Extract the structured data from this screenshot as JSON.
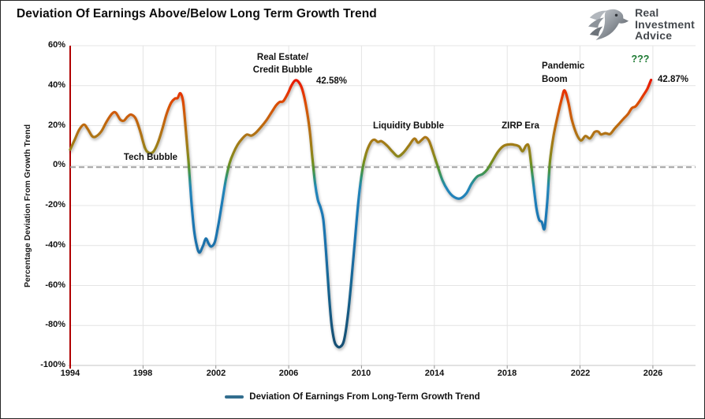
{
  "title": "Deviation Of Earnings Above/Below Long Term Growth Trend",
  "logo": {
    "line1": "Real",
    "line2": "Investment",
    "line3": "Advice"
  },
  "legend": {
    "label": "Deviation Of Earnings From Long-Term Growth Trend"
  },
  "annotations": {
    "tech_bubble": "Tech Bubble",
    "real_estate_line1": "Real Estate/",
    "real_estate_line2": "Credit Bubble",
    "peak_2006_label": "42.58%",
    "liquidity_bubble": "Liquidity Bubble",
    "zirp_era": "ZIRP Era",
    "pandemic_line1": "Pandemic",
    "pandemic_line2": "Boom",
    "question_marks": "???",
    "current_value_label": "42.87%"
  },
  "colors": {
    "left_axis_red": "#b00000",
    "gridline": "#e4e4e4",
    "zero_dash": "#a3a3a3",
    "question_green": "#1d7a33",
    "legend_swatch": "#336e8e",
    "text": "#111111"
  },
  "chart_data": {
    "type": "line",
    "title": "Deviation Of Earnings Above/Below Long Term Growth Trend",
    "xlabel": "",
    "ylabel": "Percentage Deviation From Growth Trend",
    "xlim": [
      1994,
      2026
    ],
    "ylim": [
      -100,
      60
    ],
    "grid": "horizontal every 20%, vertical every 4 years, light gray",
    "legend_position": "bottom-center",
    "zero_line": {
      "value": -0.8,
      "style": "dashed",
      "color": "#a3a3a3"
    },
    "y_ticks": [
      60,
      40,
      20,
      0,
      -20,
      -40,
      -60,
      -80,
      -100
    ],
    "y_tick_labels": [
      "60%",
      "40%",
      "20%",
      "0%",
      "-20%",
      "-40%",
      "-60%",
      "-80%",
      "-100%"
    ],
    "x_ticks": [
      1994,
      1998,
      2002,
      2006,
      2010,
      2014,
      2018,
      2022,
      2026
    ],
    "x_tick_labels": [
      "1994",
      "1998",
      "2002",
      "2006",
      "2010",
      "2014",
      "2018",
      "2022",
      "2026"
    ],
    "annotated_peaks": [
      {
        "label": "Tech Bubble",
        "year": 2000.05,
        "value": 36.2
      },
      {
        "label": "Real Estate/Credit Bubble",
        "year": 2006.35,
        "value": 42.58
      },
      {
        "label": "Liquidity Bubble",
        "year": 2013.5,
        "value": 14.2
      },
      {
        "label": "ZIRP Era",
        "year": 2018.1,
        "value": 10.6
      },
      {
        "label": "Pandemic Boom",
        "year": 2021.15,
        "value": 37.6
      },
      {
        "label": "???",
        "year": 2025.9,
        "value": 42.87
      }
    ],
    "line_gradient": [
      {
        "at": 60,
        "color": "#cf0500"
      },
      {
        "at": 45,
        "color": "#e60e00"
      },
      {
        "at": 38,
        "color": "#e82c00"
      },
      {
        "at": 30,
        "color": "#d95104"
      },
      {
        "at": 22,
        "color": "#c2660d"
      },
      {
        "at": 14,
        "color": "#ab7615"
      },
      {
        "at": 7,
        "color": "#95821a"
      },
      {
        "at": 2,
        "color": "#7b8c1e"
      },
      {
        "at": -2,
        "color": "#4f9338"
      },
      {
        "at": -6,
        "color": "#2f9377"
      },
      {
        "at": -11,
        "color": "#2287b9"
      },
      {
        "at": -20,
        "color": "#1f7cb8"
      },
      {
        "at": -40,
        "color": "#1c71aa"
      },
      {
        "at": -60,
        "color": "#186592"
      },
      {
        "at": -80,
        "color": "#14557c"
      },
      {
        "at": -100,
        "color": "#114a6b"
      }
    ],
    "series": [
      {
        "name": "Deviation Of Earnings From Long-Term Growth Trend",
        "points": [
          [
            1994.0,
            8
          ],
          [
            1994.25,
            13
          ],
          [
            1994.5,
            18
          ],
          [
            1994.75,
            20.5
          ],
          [
            1994.95,
            18.5
          ],
          [
            1995.2,
            14.8
          ],
          [
            1995.4,
            14.5
          ],
          [
            1995.7,
            17
          ],
          [
            1996.0,
            22
          ],
          [
            1996.3,
            26
          ],
          [
            1996.5,
            26.5
          ],
          [
            1996.75,
            23
          ],
          [
            1996.95,
            22.5
          ],
          [
            1997.15,
            24.5
          ],
          [
            1997.35,
            25.5
          ],
          [
            1997.6,
            23.5
          ],
          [
            1997.85,
            17
          ],
          [
            1998.1,
            9
          ],
          [
            1998.3,
            6.5
          ],
          [
            1998.55,
            6.8
          ],
          [
            1998.8,
            11
          ],
          [
            1999.05,
            18
          ],
          [
            1999.3,
            26
          ],
          [
            1999.55,
            31.5
          ],
          [
            1999.75,
            33.5
          ],
          [
            1999.9,
            33.8
          ],
          [
            2000.05,
            36.2
          ],
          [
            2000.2,
            32
          ],
          [
            2000.35,
            18
          ],
          [
            2000.5,
            2
          ],
          [
            2000.65,
            -17
          ],
          [
            2000.8,
            -32
          ],
          [
            2000.95,
            -40
          ],
          [
            2001.1,
            -43.5
          ],
          [
            2001.3,
            -40
          ],
          [
            2001.45,
            -36.5
          ],
          [
            2001.6,
            -39
          ],
          [
            2001.75,
            -40.5
          ],
          [
            2001.95,
            -38
          ],
          [
            2002.15,
            -29
          ],
          [
            2002.35,
            -18
          ],
          [
            2002.55,
            -7
          ],
          [
            2002.75,
            1
          ],
          [
            2002.95,
            6
          ],
          [
            2003.2,
            10.5
          ],
          [
            2003.45,
            13.5
          ],
          [
            2003.7,
            15.5
          ],
          [
            2003.95,
            15
          ],
          [
            2004.2,
            16.5
          ],
          [
            2004.5,
            19.5
          ],
          [
            2004.8,
            23
          ],
          [
            2005.05,
            26.5
          ],
          [
            2005.3,
            30
          ],
          [
            2005.5,
            31.8
          ],
          [
            2005.7,
            32.2
          ],
          [
            2005.95,
            36
          ],
          [
            2006.15,
            40
          ],
          [
            2006.35,
            42.58
          ],
          [
            2006.55,
            41.8
          ],
          [
            2006.75,
            38
          ],
          [
            2006.95,
            30
          ],
          [
            2007.15,
            18
          ],
          [
            2007.3,
            4
          ],
          [
            2007.45,
            -9
          ],
          [
            2007.6,
            -17
          ],
          [
            2007.75,
            -21
          ],
          [
            2007.9,
            -27
          ],
          [
            2008.05,
            -43
          ],
          [
            2008.2,
            -63
          ],
          [
            2008.35,
            -79
          ],
          [
            2008.5,
            -87.5
          ],
          [
            2008.65,
            -90.3
          ],
          [
            2008.85,
            -90.6
          ],
          [
            2009.05,
            -87
          ],
          [
            2009.25,
            -75
          ],
          [
            2009.45,
            -57
          ],
          [
            2009.65,
            -36
          ],
          [
            2009.85,
            -16
          ],
          [
            2010.05,
            -2
          ],
          [
            2010.25,
            6
          ],
          [
            2010.5,
            11.5
          ],
          [
            2010.7,
            13
          ],
          [
            2010.9,
            11.8
          ],
          [
            2011.1,
            12.2
          ],
          [
            2011.4,
            10
          ],
          [
            2011.7,
            7
          ],
          [
            2012.0,
            4.6
          ],
          [
            2012.3,
            6.5
          ],
          [
            2012.6,
            10
          ],
          [
            2012.9,
            13.5
          ],
          [
            2013.1,
            11.5
          ],
          [
            2013.3,
            12.8
          ],
          [
            2013.5,
            14.2
          ],
          [
            2013.7,
            12.5
          ],
          [
            2013.9,
            7.5
          ],
          [
            2014.15,
            0.5
          ],
          [
            2014.45,
            -7.5
          ],
          [
            2014.75,
            -12.5
          ],
          [
            2015.05,
            -15.5
          ],
          [
            2015.4,
            -16.5
          ],
          [
            2015.75,
            -14
          ],
          [
            2016.05,
            -9
          ],
          [
            2016.35,
            -5.5
          ],
          [
            2016.65,
            -4.2
          ],
          [
            2016.9,
            -2
          ],
          [
            2017.2,
            2.5
          ],
          [
            2017.5,
            7
          ],
          [
            2017.8,
            9.8
          ],
          [
            2018.1,
            10.6
          ],
          [
            2018.4,
            10.4
          ],
          [
            2018.65,
            9.6
          ],
          [
            2018.85,
            7.2
          ],
          [
            2019.05,
            10.2
          ],
          [
            2019.2,
            8.8
          ],
          [
            2019.4,
            -6
          ],
          [
            2019.6,
            -21
          ],
          [
            2019.75,
            -27
          ],
          [
            2019.9,
            -28.2
          ],
          [
            2020.05,
            -31.5
          ],
          [
            2020.2,
            -18
          ],
          [
            2020.35,
            2
          ],
          [
            2020.55,
            15
          ],
          [
            2020.8,
            26
          ],
          [
            2021.0,
            33.5
          ],
          [
            2021.15,
            37.6
          ],
          [
            2021.35,
            32
          ],
          [
            2021.55,
            23
          ],
          [
            2021.8,
            16
          ],
          [
            2022.05,
            12.6
          ],
          [
            2022.3,
            14.8
          ],
          [
            2022.55,
            13.6
          ],
          [
            2022.8,
            16.8
          ],
          [
            2023.0,
            17
          ],
          [
            2023.15,
            15.6
          ],
          [
            2023.4,
            16.2
          ],
          [
            2023.65,
            15.8
          ],
          [
            2023.9,
            18.5
          ],
          [
            2024.15,
            21
          ],
          [
            2024.4,
            23.5
          ],
          [
            2024.65,
            26
          ],
          [
            2024.85,
            28.8
          ],
          [
            2025.05,
            29.6
          ],
          [
            2025.25,
            32
          ],
          [
            2025.5,
            35.5
          ],
          [
            2025.7,
            38.5
          ],
          [
            2025.9,
            42.87
          ]
        ]
      }
    ]
  }
}
